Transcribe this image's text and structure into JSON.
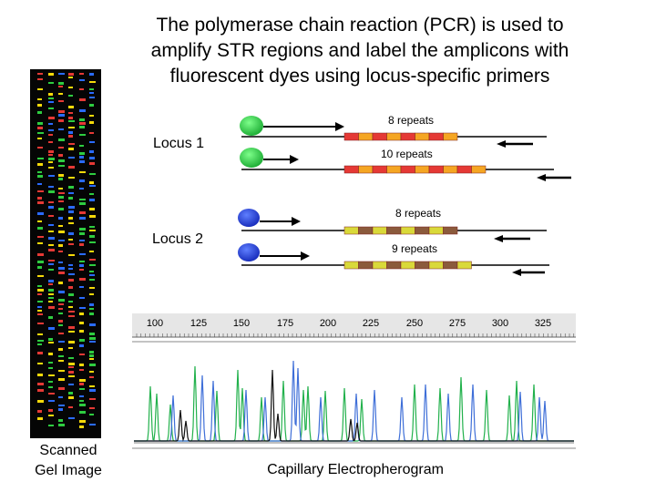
{
  "title_lines": [
    "The polymerase chain reaction (PCR) is used to",
    "amplify STR regions and label the amplicons with",
    "fluorescent dyes using locus-specific primers"
  ],
  "locus1": {
    "label": "Locus 1",
    "dye_color": "#2ecc40",
    "allele_a": {
      "label": "8 repeats",
      "repeats": 8
    },
    "allele_b": {
      "label": "10 repeats",
      "repeats": 10
    },
    "repeat_colors": [
      "#e53935",
      "#f5a623"
    ]
  },
  "locus2": {
    "label": "Locus 2",
    "dye_color": "#1f3fcf",
    "allele_a": {
      "label": "8 repeats",
      "repeats": 8
    },
    "allele_b": {
      "label": "9 repeats",
      "repeats": 9
    },
    "repeat_colors": [
      "#d9d93a",
      "#8b5a3c"
    ]
  },
  "electropherogram": {
    "caption": "Capillary Electropherogram",
    "ticks": [
      "100",
      "125",
      "150",
      "175",
      "200",
      "225",
      "250",
      "275",
      "300",
      "325"
    ],
    "trace_colors": {
      "green": "#22b14c",
      "blue": "#3f6fd8",
      "black": "#111111",
      "baseline": "#555555"
    }
  },
  "gel": {
    "caption_lines": [
      "Scanned",
      "Gel Image"
    ],
    "band_colors": [
      "#2ecc40",
      "#e53935",
      "#f5d90a",
      "#2a6bff"
    ]
  }
}
